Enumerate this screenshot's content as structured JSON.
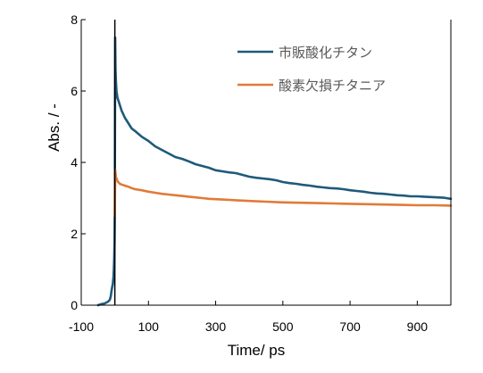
{
  "chart_data": {
    "type": "line",
    "title": "",
    "xlabel": "Time/ ps",
    "ylabel": "Abs. / -",
    "xlim": [
      -100,
      1000
    ],
    "ylim": [
      0,
      8
    ],
    "x_ticks": [
      -100,
      100,
      300,
      500,
      700,
      900
    ],
    "x_tick_labels": [
      "-100",
      "100",
      "300",
      "500",
      "700",
      "900"
    ],
    "y_ticks": [
      0,
      2,
      4,
      6,
      8
    ],
    "y_tick_labels": [
      "0",
      "2",
      "4",
      "6",
      "8"
    ],
    "grid": false,
    "legend_position": "top-right",
    "series": [
      {
        "name": "市販酸化チタン",
        "color": "#1f5a7a",
        "x": [
          -50,
          -40,
          -30,
          -20,
          -15,
          -12,
          -10,
          -8,
          -6,
          -4,
          -3,
          -2,
          -1,
          0,
          1,
          2,
          3,
          5,
          8,
          10,
          15,
          20,
          30,
          40,
          50,
          60,
          70,
          80,
          100,
          120,
          140,
          160,
          180,
          200,
          220,
          240,
          260,
          280,
          300,
          320,
          340,
          360,
          380,
          400,
          420,
          440,
          460,
          480,
          500,
          520,
          540,
          560,
          580,
          600,
          620,
          640,
          660,
          680,
          700,
          720,
          740,
          760,
          780,
          800,
          820,
          840,
          860,
          880,
          900,
          920,
          940,
          960,
          980,
          1000
        ],
        "y": [
          0.0,
          0.03,
          0.05,
          0.1,
          0.15,
          0.25,
          0.4,
          0.5,
          0.6,
          0.8,
          1.0,
          1.3,
          1.8,
          2.8,
          7.5,
          6.6,
          6.3,
          6.0,
          5.8,
          5.75,
          5.6,
          5.45,
          5.25,
          5.1,
          4.95,
          4.88,
          4.8,
          4.72,
          4.6,
          4.45,
          4.35,
          4.25,
          4.15,
          4.1,
          4.03,
          3.95,
          3.9,
          3.85,
          3.78,
          3.75,
          3.72,
          3.7,
          3.65,
          3.6,
          3.57,
          3.55,
          3.53,
          3.5,
          3.45,
          3.42,
          3.4,
          3.37,
          3.35,
          3.32,
          3.3,
          3.28,
          3.27,
          3.25,
          3.22,
          3.2,
          3.18,
          3.15,
          3.13,
          3.12,
          3.1,
          3.08,
          3.07,
          3.05,
          3.05,
          3.04,
          3.03,
          3.02,
          3.01,
          2.98
        ]
      },
      {
        "name": "酸素欠損チタニア",
        "color": "#e07b39",
        "x": [
          0,
          1,
          2,
          3,
          5,
          8,
          10,
          15,
          20,
          30,
          40,
          50,
          60,
          80,
          100,
          120,
          140,
          160,
          180,
          200,
          220,
          240,
          260,
          280,
          300,
          320,
          340,
          360,
          380,
          400,
          450,
          500,
          550,
          600,
          650,
          700,
          750,
          800,
          850,
          900,
          950,
          1000
        ],
        "y": [
          2.5,
          3.8,
          3.7,
          3.6,
          3.55,
          3.48,
          3.45,
          3.4,
          3.38,
          3.35,
          3.32,
          3.28,
          3.25,
          3.22,
          3.18,
          3.15,
          3.12,
          3.1,
          3.08,
          3.06,
          3.04,
          3.02,
          3.0,
          2.98,
          2.97,
          2.96,
          2.95,
          2.94,
          2.93,
          2.92,
          2.9,
          2.88,
          2.87,
          2.86,
          2.85,
          2.84,
          2.83,
          2.82,
          2.81,
          2.8,
          2.8,
          2.79
        ]
      }
    ]
  }
}
